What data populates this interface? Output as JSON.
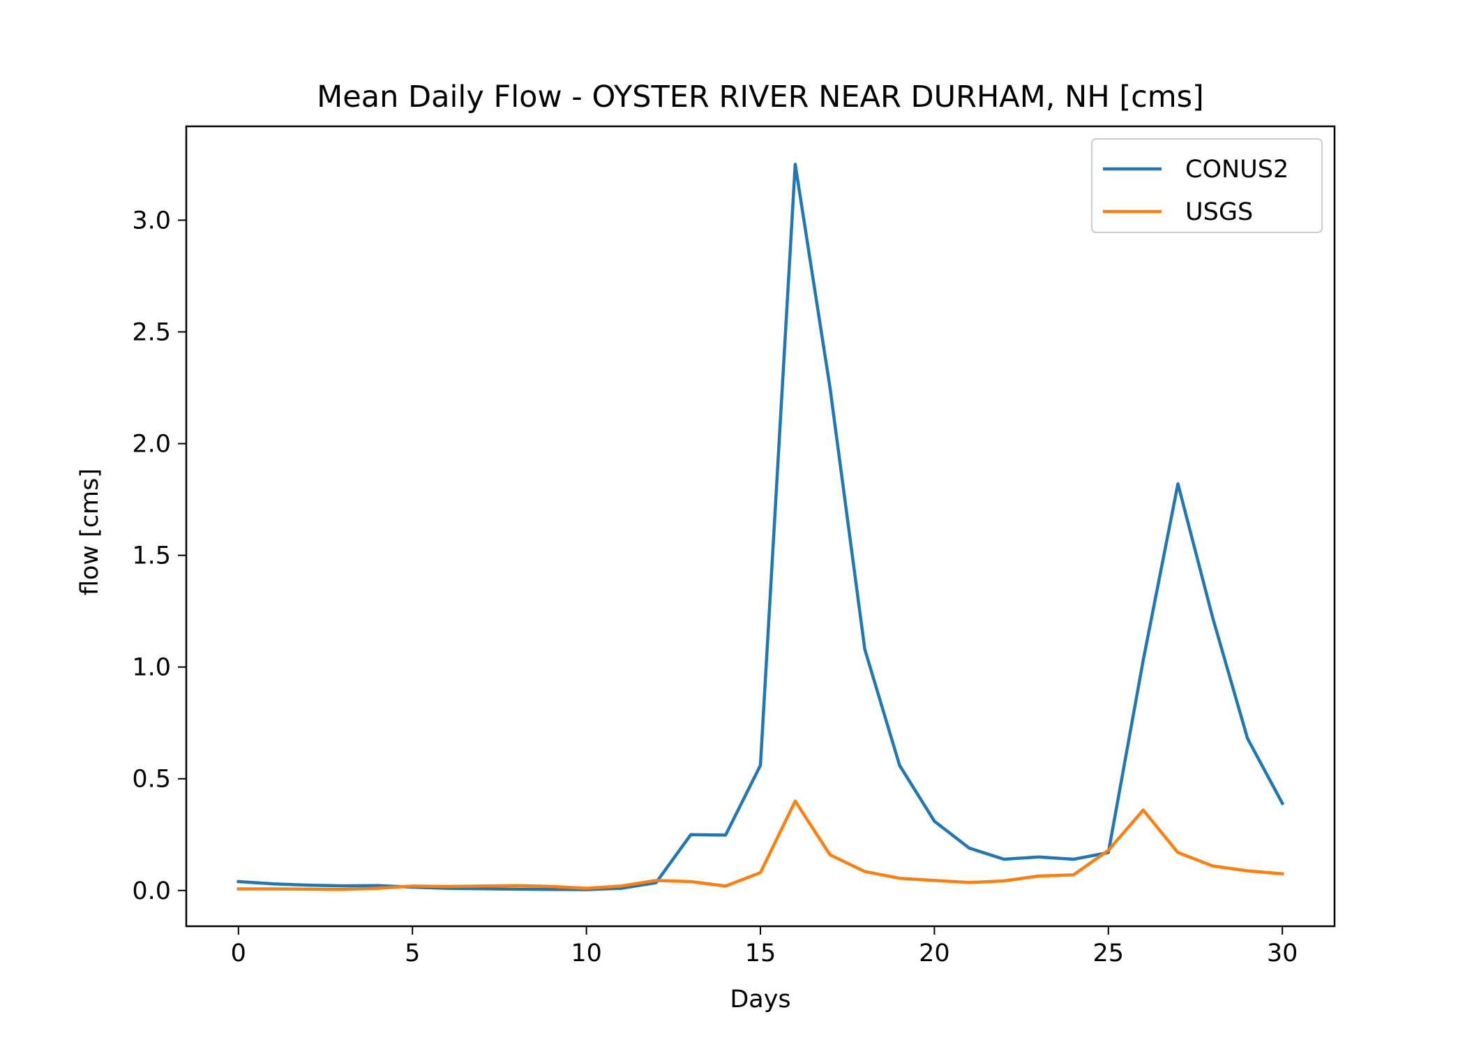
{
  "chart_data": {
    "type": "line",
    "title": "Mean Daily Flow - OYSTER RIVER NEAR DURHAM, NH [cms]",
    "xlabel": "Days",
    "ylabel": "flow [cms]",
    "xlim": [
      -1.5,
      31.5
    ],
    "ylim": [
      -0.16,
      3.42
    ],
    "xticks": [
      0,
      5,
      10,
      15,
      20,
      25,
      30
    ],
    "xtick_labels": [
      "0",
      "5",
      "10",
      "15",
      "20",
      "25",
      "30"
    ],
    "yticks": [
      0.0,
      0.5,
      1.0,
      1.5,
      2.0,
      2.5,
      3.0
    ],
    "ytick_labels": [
      "0.0",
      "0.5",
      "1.0",
      "1.5",
      "2.0",
      "2.5",
      "3.0"
    ],
    "grid": false,
    "legend_position": "top-right",
    "x": [
      0,
      1,
      2,
      3,
      4,
      5,
      6,
      7,
      8,
      9,
      10,
      11,
      12,
      13,
      14,
      15,
      16,
      17,
      18,
      19,
      20,
      21,
      22,
      23,
      24,
      25,
      26,
      27,
      28,
      29,
      30
    ],
    "series": [
      {
        "name": "CONUS2",
        "color": "#1f77b4",
        "values": [
          0.04,
          0.03,
          0.024,
          0.021,
          0.022,
          0.015,
          0.01,
          0.008,
          0.006,
          0.005,
          0.004,
          0.01,
          0.035,
          0.25,
          0.248,
          0.56,
          3.25,
          2.25,
          1.08,
          0.56,
          0.31,
          0.19,
          0.14,
          0.15,
          0.14,
          0.17,
          1.03,
          1.82,
          1.22,
          0.68,
          0.39
        ]
      },
      {
        "name": "USGS",
        "color": "#ff7f0e",
        "values": [
          0.007,
          0.007,
          0.006,
          0.005,
          0.01,
          0.02,
          0.018,
          0.02,
          0.022,
          0.018,
          0.01,
          0.02,
          0.045,
          0.04,
          0.02,
          0.08,
          0.4,
          0.16,
          0.085,
          0.055,
          0.045,
          0.036,
          0.043,
          0.065,
          0.07,
          0.18,
          0.36,
          0.17,
          0.11,
          0.088,
          0.075
        ]
      }
    ]
  }
}
